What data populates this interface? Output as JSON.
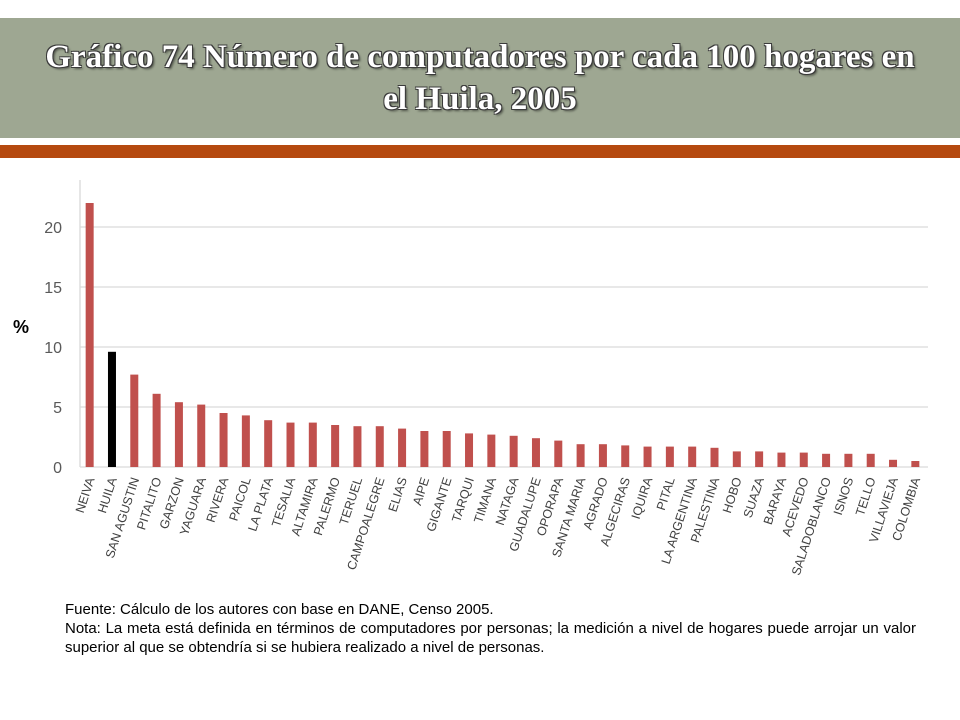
{
  "title": {
    "line1": "Gráfico 74 Número de computadores por cada 100 hogares en",
    "line2": "el Huila, 2005"
  },
  "colors": {
    "title_band": "#9ea792",
    "accent_bar": "#b5490f",
    "series": "#c0504d",
    "highlight": "#000000",
    "grid": "#d9d9d9"
  },
  "chart_data": {
    "type": "bar",
    "ylabel": "%",
    "ylim": [
      0,
      24
    ],
    "yticks": [
      0,
      5,
      10,
      15,
      20
    ],
    "grid": true,
    "highlight_category": "HUILA",
    "categories": [
      "NEIVA",
      "HUILA",
      "SAN AGUSTIN",
      "PITALITO",
      "GARZON",
      "YAGUARA",
      "RIVERA",
      "PAICOL",
      "LA PLATA",
      "TESALIA",
      "ALTAMIRA",
      "PALERMO",
      "TERUEL",
      "CAMPOALEGRE",
      "ELIAS",
      "AIPE",
      "GIGANTE",
      "TARQUI",
      "TIMANA",
      "NATAGA",
      "GUADALUPE",
      "OPORAPA",
      "SANTA MARIA",
      "AGRADO",
      "ALGECIRAS",
      "IQUIRA",
      "PITAL",
      "LA ARGENTINA",
      "PALESTINA",
      "HOBO",
      "SUAZA",
      "BARAYA",
      "ACEVEDO",
      "SALADOBLANCO",
      "ISNOS",
      "TELLO",
      "VILLAVIEJA",
      "COLOMBIA"
    ],
    "values": [
      22.0,
      9.6,
      7.7,
      6.1,
      5.4,
      5.2,
      4.5,
      4.3,
      3.9,
      3.7,
      3.7,
      3.5,
      3.4,
      3.4,
      3.2,
      3.0,
      3.0,
      2.8,
      2.7,
      2.6,
      2.4,
      2.2,
      1.9,
      1.9,
      1.8,
      1.7,
      1.7,
      1.7,
      1.6,
      1.3,
      1.3,
      1.2,
      1.2,
      1.1,
      1.1,
      1.1,
      0.6,
      0.5
    ]
  },
  "notes": {
    "source": "Fuente: Cálculo de los autores con base en DANE, Censo 2005.",
    "note": "Nota: La meta está definida en términos de computadores por personas; la medición a nivel de hogares puede arrojar un valor superior al que se obtendría si se hubiera realizado a nivel de personas."
  }
}
